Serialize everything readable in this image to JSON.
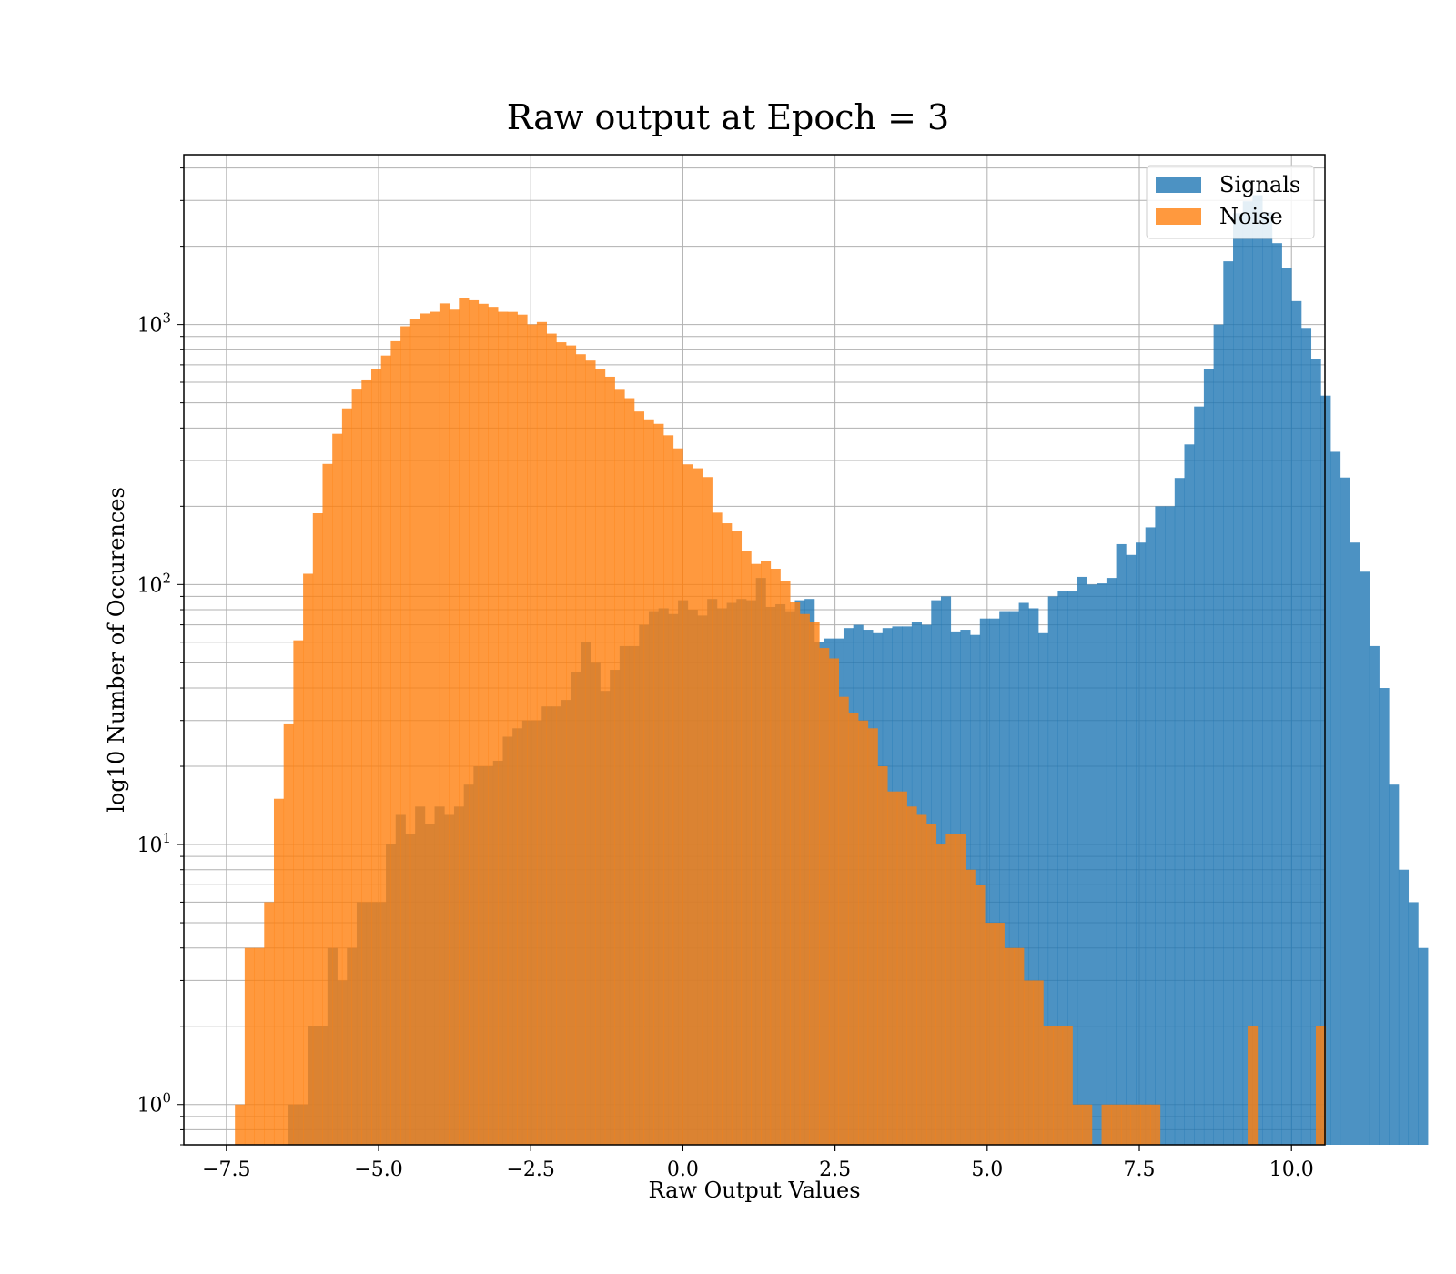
{
  "chart_data": {
    "type": "histogram",
    "title": "Raw output at Epoch = 3",
    "xlabel": "Raw Output Values",
    "ylabel": "log10 Number of Occurences",
    "xlim": [
      -8.2,
      10.55
    ],
    "ylim": [
      0.7,
      4500
    ],
    "yscale": "log",
    "grid": true,
    "legend_position": "top-right",
    "x_ticks": [
      -7.5,
      -5.0,
      -2.5,
      0.0,
      2.5,
      5.0,
      7.5,
      10.0
    ],
    "x_tick_labels": [
      "−7.5",
      "−5.0",
      "−2.5",
      "0.0",
      "2.5",
      "5.0",
      "7.5",
      "10.0"
    ],
    "y_ticks": [
      {
        "value": 1,
        "base": "10",
        "exp": "0"
      },
      {
        "value": 10,
        "base": "10",
        "exp": "1"
      },
      {
        "value": 100,
        "base": "10",
        "exp": "2"
      },
      {
        "value": 1000,
        "base": "10",
        "exp": "3"
      }
    ],
    "bin_width": 0.16,
    "series": [
      {
        "name": "Signals",
        "color": "#1f77b4",
        "opacity": 0.8,
        "x_start": -6.48,
        "counts": [
          1,
          1,
          2,
          2,
          4,
          3,
          4,
          6,
          6,
          6,
          10,
          13,
          11,
          14,
          12,
          14,
          13,
          14,
          17,
          20,
          20,
          21,
          26,
          28,
          30,
          30,
          34,
          34,
          36,
          46,
          60,
          50,
          39,
          47,
          58,
          58,
          70,
          79,
          81,
          77,
          87,
          80,
          76,
          88,
          81,
          85,
          88,
          87,
          106,
          82,
          84,
          79,
          87,
          88,
          60,
          62,
          62,
          68,
          70,
          67,
          65,
          68,
          69,
          69,
          72,
          70,
          87,
          90,
          66,
          67,
          64,
          74,
          74,
          79,
          79,
          85,
          81,
          65,
          90,
          94,
          94,
          107,
          100,
          101,
          106,
          143,
          130,
          145,
          166,
          200,
          200,
          257,
          346,
          484,
          672,
          1000,
          1751,
          2679,
          2978,
          3143,
          2701,
          2056,
          1649,
          1231,
          971,
          736,
          533,
          324,
          258,
          145,
          112,
          58,
          40,
          17,
          8,
          6,
          4
        ]
      },
      {
        "name": "Noise",
        "color": "#ff7f0e",
        "opacity": 0.8,
        "x_start": -7.36,
        "counts": [
          1,
          4,
          4,
          6,
          15,
          29,
          61,
          110,
          188,
          291,
          380,
          476,
          562,
          610,
          672,
          760,
          863,
          985,
          1050,
          1103,
          1120,
          1206,
          1141,
          1262,
          1240,
          1202,
          1170,
          1120,
          1119,
          1092,
          1001,
          1023,
          923,
          855,
          831,
          769,
          727,
          672,
          630,
          561,
          521,
          463,
          432,
          415,
          375,
          334,
          290,
          280,
          259,
          189,
          172,
          161,
          135,
          120,
          123,
          115,
          103,
          86,
          77,
          72,
          57,
          52,
          37,
          32,
          30,
          28,
          20,
          16,
          16,
          14,
          13,
          12,
          10,
          11,
          11,
          8,
          7,
          5,
          5,
          4,
          4,
          3,
          3,
          2,
          2,
          2,
          1,
          1,
          0,
          1,
          1,
          1,
          1,
          1,
          1,
          0,
          0,
          0,
          0,
          0,
          0,
          0,
          0,
          0,
          2,
          0,
          0,
          0,
          0,
          0,
          0,
          2
        ]
      }
    ]
  }
}
